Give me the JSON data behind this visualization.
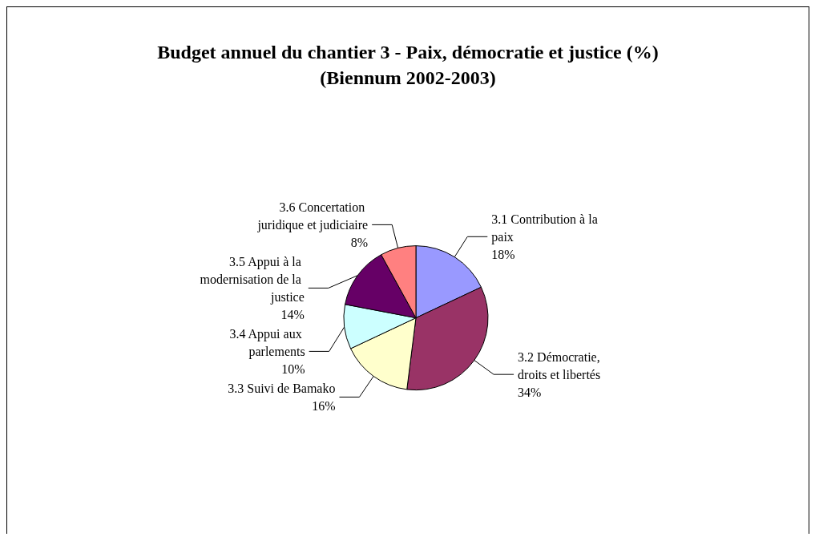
{
  "chart_data": {
    "type": "pie",
    "title": "Budget annuel du chantier 3 - Paix, démocratie et justice (%)\n(Biennum 2002-2003)",
    "categories": [
      "3.1 Contribution à la paix",
      "3.2 Démocratie, droits et libertés",
      "3.3 Suivi de Bamako",
      "3.4 Appui aux parlements",
      "3.5 Appui à la modernisation de la justice",
      "3.6 Concertation juridique et judiciaire"
    ],
    "values": [
      18,
      34,
      16,
      10,
      14,
      8
    ],
    "value_labels": [
      "18%",
      "34%",
      "16%",
      "10%",
      "14%",
      "8%"
    ],
    "colors": [
      "#9999ff",
      "#993366",
      "#ffffcc",
      "#ccffff",
      "#660066",
      "#ff8080"
    ],
    "legend": false
  }
}
